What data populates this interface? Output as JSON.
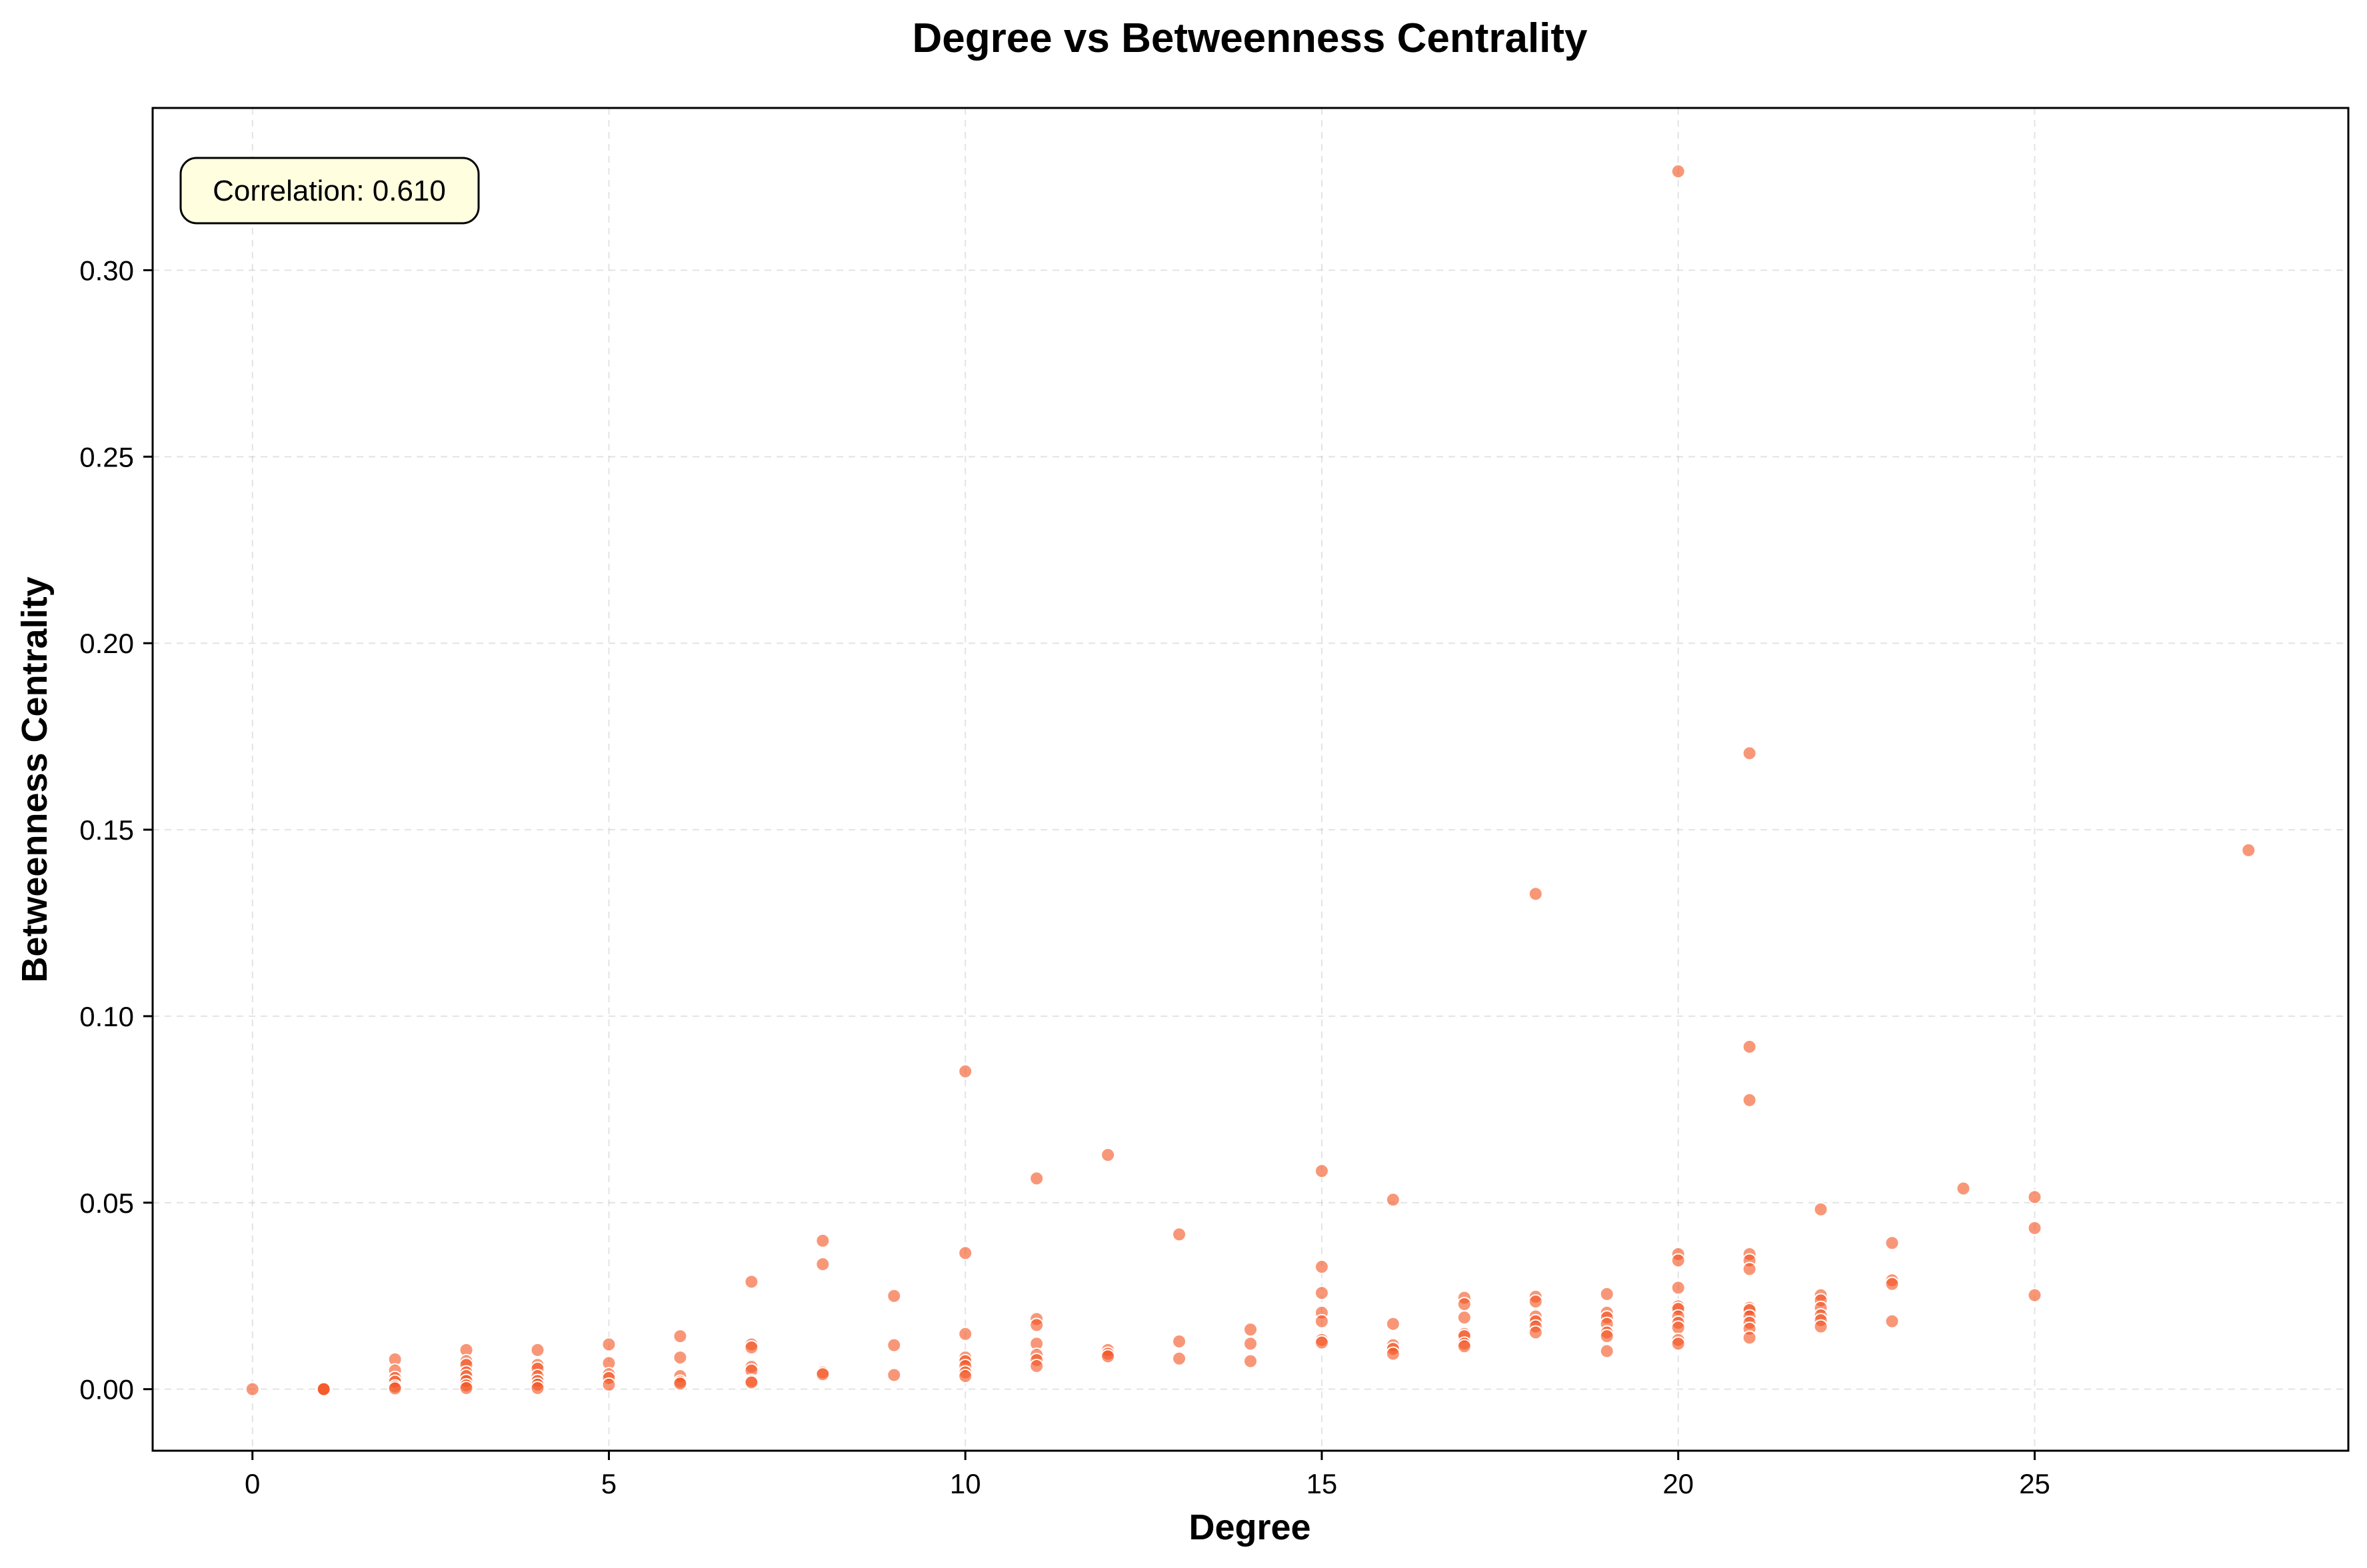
{
  "chart_data": {
    "type": "scatter",
    "title": "Degree vs Betweenness Centrality",
    "xlabel": "Degree",
    "ylabel": "Betweenness Centrality",
    "xlim": [
      -1.4,
      29.4
    ],
    "ylim": [
      -0.0165,
      0.3435
    ],
    "xticks": [
      0,
      5,
      10,
      15,
      20,
      25
    ],
    "xtick_labels": [
      "0",
      "5",
      "10",
      "15",
      "20",
      "25"
    ],
    "yticks": [
      0.0,
      0.05,
      0.1,
      0.15,
      0.2,
      0.25,
      0.3
    ],
    "ytick_labels": [
      "0.00",
      "0.05",
      "0.10",
      "0.15",
      "0.20",
      "0.25",
      "0.30"
    ],
    "grid": true,
    "marker_color": "#f4511e",
    "marker_opacity": 0.6,
    "annotation": "Correlation: 0.610",
    "points": [
      [
        0,
        0.0
      ],
      [
        1,
        0.0
      ],
      [
        1,
        0.0
      ],
      [
        1,
        0.0
      ],
      [
        2,
        0.008
      ],
      [
        2,
        0.005
      ],
      [
        2,
        0.003
      ],
      [
        2,
        0.002
      ],
      [
        2,
        0.0007
      ],
      [
        2,
        0.0002
      ],
      [
        3,
        0.0105
      ],
      [
        3,
        0.0075
      ],
      [
        3,
        0.0065
      ],
      [
        3,
        0.0045
      ],
      [
        3,
        0.0035
      ],
      [
        3,
        0.0022
      ],
      [
        3,
        0.001
      ],
      [
        3,
        0.0003
      ],
      [
        4,
        0.0105
      ],
      [
        4,
        0.0065
      ],
      [
        4,
        0.0055
      ],
      [
        4,
        0.0035
      ],
      [
        4,
        0.0022
      ],
      [
        4,
        0.0012
      ],
      [
        4,
        0.0003
      ],
      [
        5,
        0.012
      ],
      [
        5,
        0.007
      ],
      [
        5,
        0.004
      ],
      [
        5,
        0.003
      ],
      [
        5,
        0.0012
      ],
      [
        6,
        0.0142
      ],
      [
        6,
        0.0085
      ],
      [
        6,
        0.0035
      ],
      [
        6,
        0.002
      ],
      [
        6,
        0.0015
      ],
      [
        7,
        0.0288
      ],
      [
        7,
        0.012
      ],
      [
        7,
        0.0112
      ],
      [
        7,
        0.006
      ],
      [
        7,
        0.005
      ],
      [
        7,
        0.0022
      ],
      [
        7,
        0.0018
      ],
      [
        8,
        0.0398
      ],
      [
        8,
        0.0335
      ],
      [
        8,
        0.0045
      ],
      [
        8,
        0.004
      ],
      [
        9,
        0.025
      ],
      [
        9,
        0.0118
      ],
      [
        9,
        0.0038
      ],
      [
        10,
        0.0852
      ],
      [
        10,
        0.0365
      ],
      [
        10,
        0.0148
      ],
      [
        10,
        0.0085
      ],
      [
        10,
        0.0075
      ],
      [
        10,
        0.0062
      ],
      [
        10,
        0.0045
      ],
      [
        10,
        0.0035
      ],
      [
        11,
        0.0565
      ],
      [
        11,
        0.0188
      ],
      [
        11,
        0.0172
      ],
      [
        11,
        0.0122
      ],
      [
        11,
        0.0092
      ],
      [
        11,
        0.0078
      ],
      [
        11,
        0.0062
      ],
      [
        12,
        0.0628
      ],
      [
        12,
        0.0105
      ],
      [
        12,
        0.0095
      ],
      [
        12,
        0.0088
      ],
      [
        13,
        0.0415
      ],
      [
        13,
        0.0128
      ],
      [
        13,
        0.0082
      ],
      [
        14,
        0.016
      ],
      [
        14,
        0.0122
      ],
      [
        14,
        0.0075
      ],
      [
        15,
        0.0585
      ],
      [
        15,
        0.0328
      ],
      [
        15,
        0.0258
      ],
      [
        15,
        0.0205
      ],
      [
        15,
        0.0182
      ],
      [
        15,
        0.0132
      ],
      [
        15,
        0.0125
      ],
      [
        16,
        0.0508
      ],
      [
        16,
        0.0175
      ],
      [
        16,
        0.0118
      ],
      [
        16,
        0.0108
      ],
      [
        16,
        0.0095
      ],
      [
        17,
        0.0245
      ],
      [
        17,
        0.0228
      ],
      [
        17,
        0.0192
      ],
      [
        17,
        0.0148
      ],
      [
        17,
        0.0142
      ],
      [
        17,
        0.0122
      ],
      [
        17,
        0.0115
      ],
      [
        18,
        0.1328
      ],
      [
        18,
        0.0248
      ],
      [
        18,
        0.0235
      ],
      [
        18,
        0.0195
      ],
      [
        18,
        0.0182
      ],
      [
        18,
        0.0168
      ],
      [
        18,
        0.0152
      ],
      [
        19,
        0.0255
      ],
      [
        19,
        0.0205
      ],
      [
        19,
        0.0192
      ],
      [
        19,
        0.0175
      ],
      [
        19,
        0.0152
      ],
      [
        19,
        0.0142
      ],
      [
        19,
        0.0102
      ],
      [
        20,
        0.3265
      ],
      [
        20,
        0.0362
      ],
      [
        20,
        0.0345
      ],
      [
        20,
        0.0272
      ],
      [
        20,
        0.0222
      ],
      [
        20,
        0.0215
      ],
      [
        20,
        0.0195
      ],
      [
        20,
        0.0178
      ],
      [
        20,
        0.0165
      ],
      [
        20,
        0.0132
      ],
      [
        20,
        0.0122
      ],
      [
        21,
        0.1705
      ],
      [
        21,
        0.0918
      ],
      [
        21,
        0.0775
      ],
      [
        21,
        0.0362
      ],
      [
        21,
        0.0345
      ],
      [
        21,
        0.0322
      ],
      [
        21,
        0.0218
      ],
      [
        21,
        0.0212
      ],
      [
        21,
        0.0195
      ],
      [
        21,
        0.0178
      ],
      [
        21,
        0.0162
      ],
      [
        21,
        0.0138
      ],
      [
        22,
        0.0482
      ],
      [
        22,
        0.0252
      ],
      [
        22,
        0.0238
      ],
      [
        22,
        0.0218
      ],
      [
        22,
        0.0198
      ],
      [
        22,
        0.0185
      ],
      [
        22,
        0.0168
      ],
      [
        23,
        0.0392
      ],
      [
        23,
        0.0292
      ],
      [
        23,
        0.0282
      ],
      [
        23,
        0.0182
      ],
      [
        24,
        0.0538
      ],
      [
        25,
        0.0515
      ],
      [
        25,
        0.0432
      ],
      [
        25,
        0.0252
      ],
      [
        28,
        0.1445
      ]
    ]
  }
}
